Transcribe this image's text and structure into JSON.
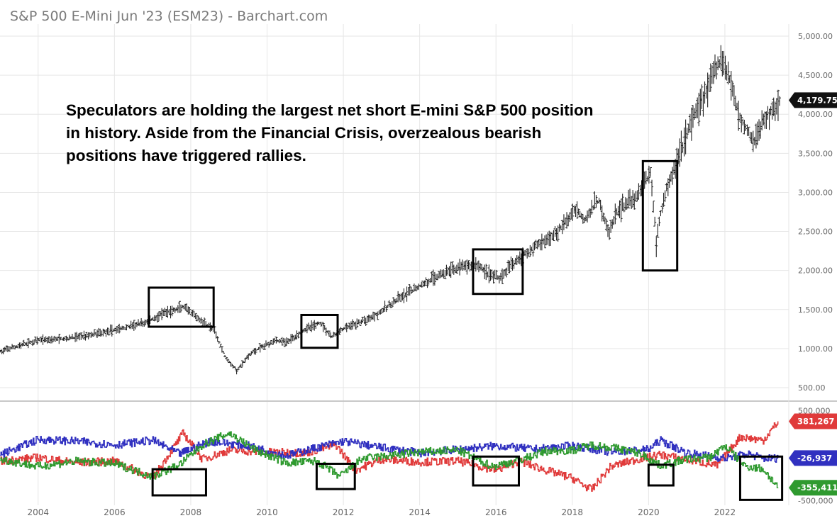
{
  "chart_data": [
    {
      "type": "ohlc",
      "title": "S&P 500 E-Mini Jun '23 (ESM23) - Barchart.com",
      "annotation": "Speculators are holding the largest net short E-mini S&P 500 position in history. Aside from the Financial Crisis, overzealous bearish positions have triggered rallies.",
      "x_tick_labels": [
        "2004",
        "2006",
        "2008",
        "2010",
        "2012",
        "2014",
        "2016",
        "2018",
        "2020",
        "2022"
      ],
      "ylim": [
        400,
        5100
      ],
      "y_tick_values": [
        500,
        1000,
        1500,
        2000,
        2500,
        3000,
        3500,
        4000,
        4500,
        5000
      ],
      "y_tick_labels": [
        "500.00",
        "1,000.00",
        "1,500.00",
        "2,000.00",
        "2,500.00",
        "3,000.00",
        "3,500.00",
        "4,000.00",
        "4,500.00",
        "5,000.00"
      ],
      "last_price": 4179.75,
      "last_price_label": "4,179.75",
      "price_anchors": [
        [
          2003.0,
          960
        ],
        [
          2004.0,
          1110
        ],
        [
          2004.8,
          1130
        ],
        [
          2005.5,
          1190
        ],
        [
          2006.2,
          1260
        ],
        [
          2006.8,
          1330
        ],
        [
          2007.3,
          1450
        ],
        [
          2007.8,
          1530
        ],
        [
          2008.2,
          1380
        ],
        [
          2008.6,
          1250
        ],
        [
          2008.9,
          900
        ],
        [
          2009.2,
          720
        ],
        [
          2009.6,
          950
        ],
        [
          2010.2,
          1110
        ],
        [
          2010.5,
          1080
        ],
        [
          2011.0,
          1250
        ],
        [
          2011.4,
          1330
        ],
        [
          2011.7,
          1150
        ],
        [
          2012.0,
          1250
        ],
        [
          2012.6,
          1370
        ],
        [
          2013.0,
          1480
        ],
        [
          2013.5,
          1650
        ],
        [
          2014.0,
          1800
        ],
        [
          2014.5,
          1940
        ],
        [
          2015.0,
          2040
        ],
        [
          2015.5,
          2080
        ],
        [
          2015.8,
          1960
        ],
        [
          2016.1,
          1900
        ],
        [
          2016.5,
          2120
        ],
        [
          2017.0,
          2300
        ],
        [
          2017.5,
          2450
        ],
        [
          2017.9,
          2650
        ],
        [
          2018.1,
          2800
        ],
        [
          2018.3,
          2650
        ],
        [
          2018.7,
          2900
        ],
        [
          2018.95,
          2480
        ],
        [
          2019.2,
          2780
        ],
        [
          2019.7,
          2950
        ],
        [
          2020.05,
          3250
        ],
        [
          2020.2,
          2400
        ],
        [
          2020.4,
          2950
        ],
        [
          2020.7,
          3350
        ],
        [
          2021.0,
          3750
        ],
        [
          2021.5,
          4300
        ],
        [
          2021.9,
          4700
        ],
        [
          2022.1,
          4500
        ],
        [
          2022.4,
          3950
        ],
        [
          2022.75,
          3650
        ],
        [
          2023.0,
          3900
        ],
        [
          2023.3,
          4100
        ],
        [
          2023.45,
          4180
        ]
      ],
      "price_low": 670,
      "price_high": 4810,
      "highlight_box_spans": [
        [
          2006.9,
          2008.6,
          1280,
          1780
        ],
        [
          2010.9,
          2011.85,
          1010,
          1430
        ],
        [
          2015.4,
          2016.7,
          1700,
          2270
        ],
        [
          2019.85,
          2020.75,
          2000,
          3400
        ]
      ]
    },
    {
      "type": "step-line",
      "ylim": [
        -550000,
        550000
      ],
      "y_tick_labels": [
        "500,000",
        "-500,000"
      ],
      "series": [
        {
          "color": "#e03a3a",
          "last_value": 381267,
          "last_label": "381,267",
          "anchors": [
            [
              2003.0,
              -60000
            ],
            [
              2004.0,
              -20000
            ],
            [
              2005.0,
              -80000
            ],
            [
              2006.0,
              -60000
            ],
            [
              2007.0,
              -250000
            ],
            [
              2007.8,
              250000
            ],
            [
              2008.3,
              -40000
            ],
            [
              2009.0,
              60000
            ],
            [
              2010.0,
              40000
            ],
            [
              2011.0,
              30000
            ],
            [
              2011.8,
              120000
            ],
            [
              2012.3,
              -160000
            ],
            [
              2013.0,
              -40000
            ],
            [
              2014.0,
              -70000
            ],
            [
              2015.0,
              -60000
            ],
            [
              2016.0,
              -160000
            ],
            [
              2016.6,
              -60000
            ],
            [
              2017.3,
              -160000
            ],
            [
              2018.0,
              -250000
            ],
            [
              2018.5,
              -380000
            ],
            [
              2019.0,
              -120000
            ],
            [
              2019.7,
              -40000
            ],
            [
              2020.3,
              10000
            ],
            [
              2021.0,
              -40000
            ],
            [
              2021.8,
              -110000
            ],
            [
              2022.4,
              210000
            ],
            [
              2023.0,
              170000
            ],
            [
              2023.4,
              380000
            ]
          ]
        },
        {
          "color": "#3030c0",
          "last_value": -26937,
          "last_label": "-26,937",
          "anchors": [
            [
              2003.0,
              10000
            ],
            [
              2004.0,
              180000
            ],
            [
              2005.0,
              160000
            ],
            [
              2006.0,
              120000
            ],
            [
              2007.0,
              170000
            ],
            [
              2007.7,
              20000
            ],
            [
              2008.5,
              160000
            ],
            [
              2009.5,
              110000
            ],
            [
              2010.5,
              0
            ],
            [
              2011.3,
              90000
            ],
            [
              2012.0,
              160000
            ],
            [
              2013.0,
              90000
            ],
            [
              2014.0,
              30000
            ],
            [
              2015.0,
              70000
            ],
            [
              2016.0,
              110000
            ],
            [
              2017.0,
              70000
            ],
            [
              2018.0,
              110000
            ],
            [
              2019.0,
              40000
            ],
            [
              2020.0,
              70000
            ],
            [
              2020.3,
              170000
            ],
            [
              2021.0,
              30000
            ],
            [
              2022.0,
              -30000
            ],
            [
              2022.6,
              20000
            ],
            [
              2023.0,
              -30000
            ],
            [
              2023.4,
              -27000
            ]
          ]
        },
        {
          "color": "#2f9a2f",
          "last_value": -355411,
          "last_label": "-355,411",
          "anchors": [
            [
              2003.0,
              -40000
            ],
            [
              2004.0,
              -120000
            ],
            [
              2005.0,
              -60000
            ],
            [
              2006.0,
              -90000
            ],
            [
              2007.0,
              -230000
            ],
            [
              2007.7,
              -100000
            ],
            [
              2008.3,
              120000
            ],
            [
              2009.0,
              250000
            ],
            [
              2009.7,
              60000
            ],
            [
              2010.5,
              -80000
            ],
            [
              2011.3,
              -60000
            ],
            [
              2011.9,
              -230000
            ],
            [
              2012.5,
              -30000
            ],
            [
              2013.0,
              -10000
            ],
            [
              2014.0,
              40000
            ],
            [
              2015.0,
              60000
            ],
            [
              2015.9,
              -120000
            ],
            [
              2016.6,
              -50000
            ],
            [
              2017.3,
              50000
            ],
            [
              2018.0,
              60000
            ],
            [
              2018.5,
              120000
            ],
            [
              2019.2,
              80000
            ],
            [
              2019.8,
              20000
            ],
            [
              2020.3,
              -110000
            ],
            [
              2021.0,
              -40000
            ],
            [
              2021.6,
              -20000
            ],
            [
              2022.0,
              110000
            ],
            [
              2022.5,
              -110000
            ],
            [
              2023.0,
              -150000
            ],
            [
              2023.4,
              -355000
            ]
          ]
        }
      ],
      "highlight_box_spans": [
        [
          2007.0,
          2008.4,
          -440000,
          -150000
        ],
        [
          2011.3,
          2012.3,
          -370000,
          -90000
        ],
        [
          2015.4,
          2016.6,
          -330000,
          -10000
        ],
        [
          2020.0,
          2020.65,
          -330000,
          -100000
        ],
        [
          2022.4,
          2023.5,
          -490000,
          -10000
        ]
      ]
    }
  ]
}
